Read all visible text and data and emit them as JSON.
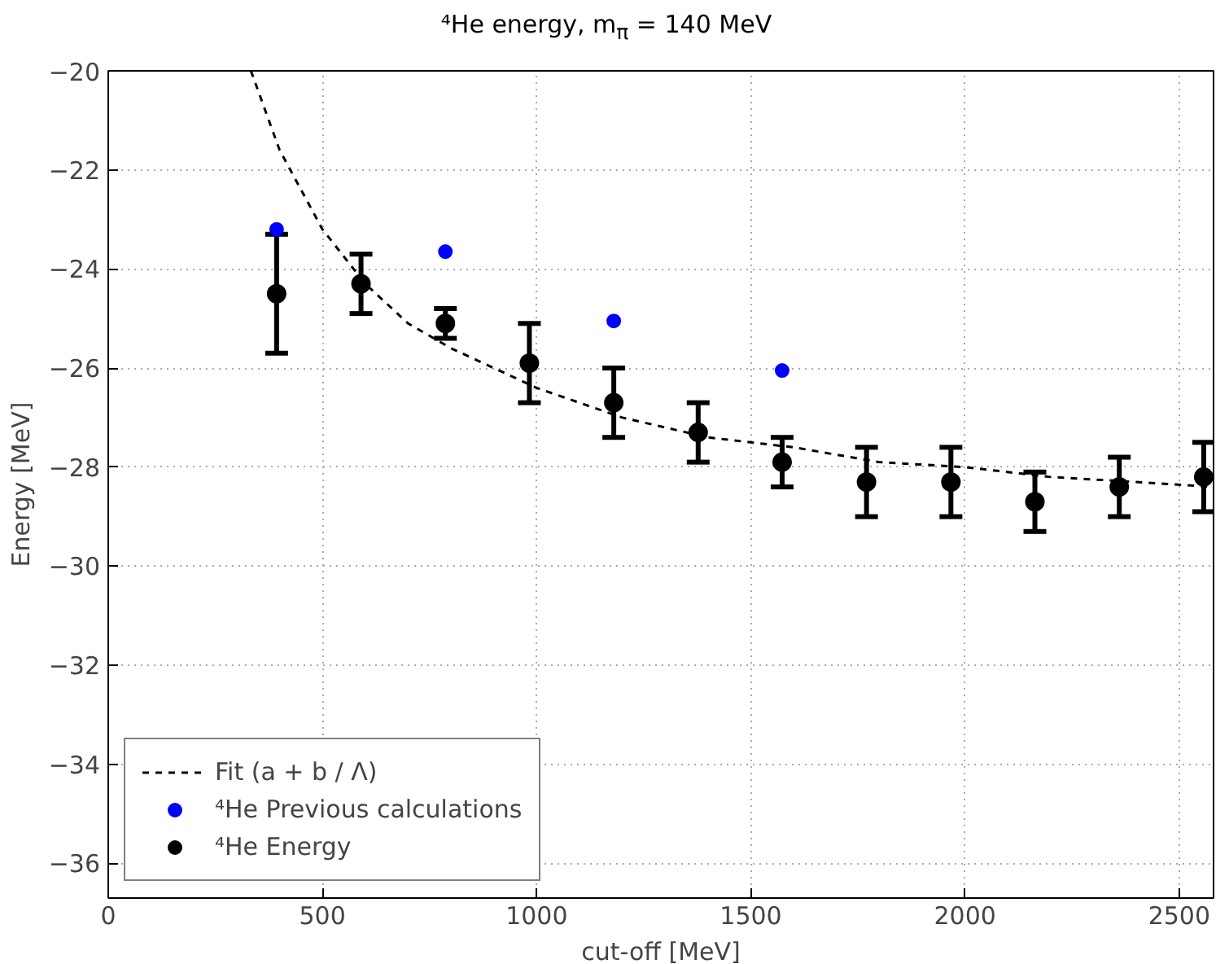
{
  "chart_data": {
    "type": "scatter",
    "title": "⁴He energy, m$_{π}$ = 140 MeV",
    "xlabel": "cut-off [MeV]",
    "ylabel": "Energy [MeV]",
    "xlim": [
      0,
      2580
    ],
    "xticks": [
      0,
      500,
      1000,
      1500,
      2000,
      2500
    ],
    "ylim": [
      -36.7,
      -20
    ],
    "yticks": [
      -20,
      -22,
      -24,
      -26,
      -28,
      -30,
      -32,
      -34,
      -36
    ],
    "grid": true,
    "legend": "bottom left",
    "series": [
      {
        "name": "Fit (a + b / Λ)",
        "type": "line",
        "line_style": "dashed",
        "marker": "none",
        "color": "#000000",
        "x": [
          333,
          400,
          500,
          600,
          700,
          800,
          1000,
          1200,
          1400,
          1600,
          1800,
          2000,
          2200,
          2400,
          2580
        ],
        "values": [
          -20.0,
          -21.6,
          -23.2,
          -24.3,
          -25.1,
          -25.6,
          -26.4,
          -27.0,
          -27.4,
          -27.6,
          -27.9,
          -28.0,
          -28.2,
          -28.3,
          -28.4
        ]
      },
      {
        "name": "⁴He Previous calculations",
        "marker": "circle",
        "color": "#0000ff",
        "x": [
          393,
          787,
          1180,
          1573
        ],
        "values": [
          -23.2,
          -23.65,
          -25.05,
          -26.05
        ]
      },
      {
        "name": "⁴He Energy",
        "marker": "circle",
        "color": "#000000",
        "x": [
          393,
          590,
          787,
          983,
          1180,
          1377,
          1573,
          1770,
          1967,
          2163,
          2360,
          2557
        ],
        "values": [
          -24.5,
          -24.3,
          -25.1,
          -25.9,
          -26.7,
          -27.3,
          -27.9,
          -28.3,
          -28.3,
          -28.7,
          -28.4,
          -28.2
        ],
        "errors": [
          1.2,
          0.6,
          0.3,
          0.8,
          0.7,
          0.6,
          0.5,
          0.7,
          0.7,
          0.6,
          0.6,
          0.7
        ]
      }
    ]
  }
}
